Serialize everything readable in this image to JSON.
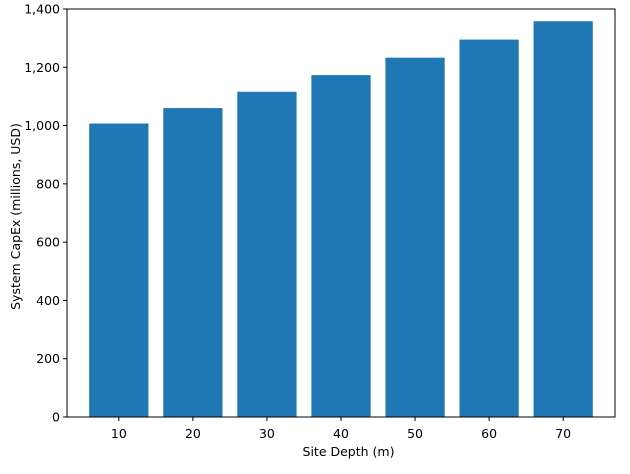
{
  "chart_data": {
    "type": "bar",
    "title": "",
    "xlabel": "Site Depth (m)",
    "ylabel": "System CapEx (millions, USD)",
    "categories": [
      "10",
      "20",
      "30",
      "40",
      "50",
      "60",
      "70"
    ],
    "values": [
      1007,
      1060,
      1116,
      1173,
      1233,
      1295,
      1358
    ],
    "ylim": [
      0,
      1400
    ],
    "yticks": [
      0,
      200,
      400,
      600,
      800,
      1000,
      1200,
      1400
    ],
    "ytick_labels": [
      "0",
      "200",
      "400",
      "600",
      "800",
      "1,000",
      "1,200",
      "1,400"
    ],
    "bar_color": "#1f77b4",
    "grid": false,
    "legend": "none"
  }
}
